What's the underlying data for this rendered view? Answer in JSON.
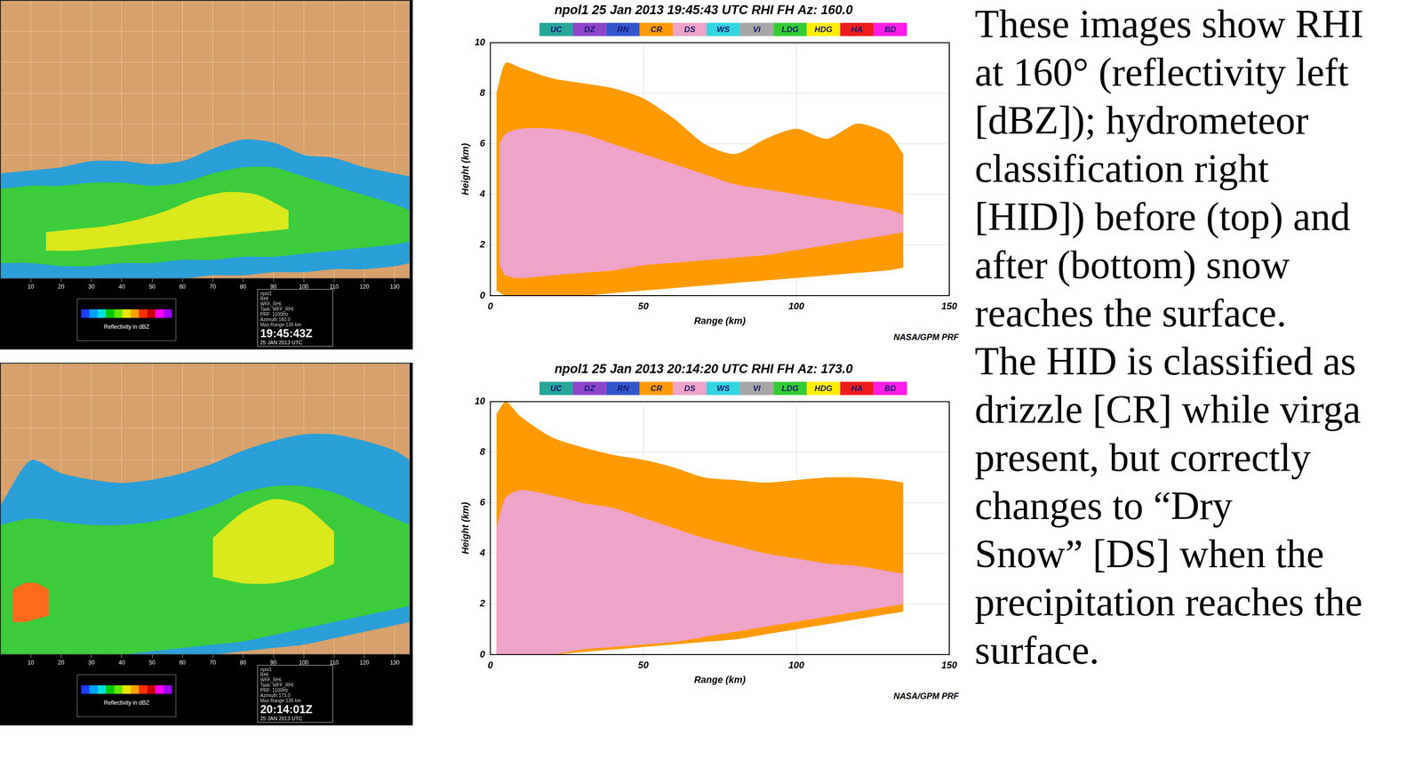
{
  "caption": [
    "These images show RHI",
    "at 160° (reflectivity left",
    "[dBZ]); hydrometeor",
    "classification right",
    "[HID]) before (top) and",
    "after (bottom) snow",
    "reaches the surface.",
    "The HID is classified as",
    "drizzle [CR] while virga",
    "present, but correctly",
    "changes to “Dry",
    "Snow” [DS] when the",
    "precipitation reaches the",
    "surface."
  ],
  "chart_data": [
    {
      "type": "area",
      "panel": "reflectivity",
      "xlim": [
        0,
        135
      ],
      "ylim": [
        0,
        9
      ],
      "xticks": [
        10,
        20,
        30,
        40,
        50,
        60,
        70,
        80,
        90,
        100,
        110,
        120,
        130
      ],
      "yticks": [
        0,
        1,
        2,
        3,
        4,
        5,
        6,
        7,
        8,
        9
      ],
      "grid": true,
      "tick_labels": "x",
      "series": [
        {
          "color": "#2a9fd8",
          "x": [
            0,
            10,
            20,
            30,
            40,
            50,
            60,
            70,
            80,
            90,
            100,
            110,
            120,
            130,
            135
          ],
          "bottom": [
            0,
            0,
            0,
            0,
            0,
            0,
            0,
            0.1,
            0.1,
            0.2,
            0.2,
            0.3,
            0.3,
            0.4,
            0.5
          ],
          "top": [
            3.4,
            3.5,
            3.6,
            3.8,
            3.8,
            3.7,
            3.8,
            4.2,
            4.5,
            4.4,
            4.0,
            3.9,
            3.6,
            3.4,
            3.3
          ]
        },
        {
          "color": "#3ccc3c",
          "x": [
            0,
            10,
            20,
            30,
            40,
            50,
            60,
            70,
            80,
            90,
            100,
            110,
            120,
            130,
            135
          ],
          "bottom": [
            0.5,
            0.5,
            0.4,
            0.4,
            0.5,
            0.5,
            0.6,
            0.6,
            0.7,
            0.7,
            0.8,
            0.9,
            1.0,
            1.1,
            1.2
          ],
          "top": [
            2.9,
            3.0,
            3.0,
            3.1,
            3.1,
            3.0,
            3.1,
            3.4,
            3.6,
            3.6,
            3.3,
            3.0,
            2.7,
            2.4,
            2.2
          ]
        },
        {
          "color": "#dbe81c",
          "x": [
            15,
            25,
            35,
            45,
            55,
            65,
            75,
            85,
            95
          ],
          "bottom": [
            0.9,
            0.9,
            1.0,
            1.1,
            1.2,
            1.3,
            1.4,
            1.5,
            1.6
          ],
          "top": [
            1.5,
            1.6,
            1.7,
            1.9,
            2.2,
            2.6,
            2.8,
            2.7,
            2.2
          ]
        }
      ],
      "colorbar": {
        "label": "Reflectivity in dBZ",
        "colors": [
          "#1e3cff",
          "#00a0ff",
          "#00e0e0",
          "#00c800",
          "#64e600",
          "#e6e600",
          "#ffa000",
          "#ff3200",
          "#c80000",
          "#ff00ff",
          "#a000ff"
        ]
      },
      "info": {
        "lines": [
          "npol1",
          "RHI",
          "WFF_RHI",
          "Task: WFF_RHI",
          "PRF: 1100Hz",
          "Azimuth:160.0",
          "Max Range:135 km"
        ],
        "time": "19:45:43Z",
        "date": "25 JAN 2013 UTC"
      }
    },
    {
      "type": "area",
      "panel": "hid",
      "title": "npol1 25 Jan 2013 19:45:43 UTC RHI FH Az: 160.0",
      "x_label": "Range (km)",
      "y_label": "Height (km)",
      "credit": "NASA/GPM PRF",
      "xlim": [
        0,
        150
      ],
      "ylim": [
        0,
        10
      ],
      "xticks": [
        0,
        50,
        100,
        150
      ],
      "yticks": [
        0,
        2,
        4,
        6,
        8,
        10
      ],
      "grid": true,
      "legend": "top",
      "classes": [
        {
          "name": "UC",
          "color": "#26a69a"
        },
        {
          "name": "DZ",
          "color": "#8e44c8"
        },
        {
          "name": "RN",
          "color": "#3355cc"
        },
        {
          "name": "CR",
          "color": "#ff9a00"
        },
        {
          "name": "DS",
          "color": "#eea3c9"
        },
        {
          "name": "WS",
          "color": "#33d6e0"
        },
        {
          "name": "VI",
          "color": "#a6a6a6"
        },
        {
          "name": "LDG",
          "color": "#33cc33"
        },
        {
          "name": "HDG",
          "color": "#ffee00"
        },
        {
          "name": "HA",
          "color": "#ee1c1c"
        },
        {
          "name": "BD",
          "color": "#ff1ee6"
        }
      ],
      "series": [
        {
          "name": "CR",
          "color": "#ff9a00",
          "x": [
            2,
            5,
            10,
            20,
            30,
            40,
            50,
            60,
            70,
            80,
            90,
            100,
            110,
            120,
            130,
            135
          ],
          "bottom": [
            0.2,
            0,
            0,
            0,
            0,
            0.1,
            0.2,
            0.3,
            0.4,
            0.5,
            0.6,
            0.7,
            0.8,
            0.9,
            1.0,
            1.1
          ],
          "top": [
            8.0,
            9.2,
            9.0,
            8.6,
            8.4,
            8.2,
            7.8,
            7.0,
            6.0,
            5.6,
            6.2,
            6.6,
            6.2,
            6.8,
            6.4,
            5.6
          ]
        },
        {
          "name": "DS",
          "color": "#eea3c9",
          "x": [
            3,
            5,
            10,
            20,
            30,
            40,
            50,
            60,
            70,
            80,
            90,
            100,
            110,
            120,
            130,
            135
          ],
          "bottom": [
            1.2,
            0.8,
            0.7,
            0.8,
            0.9,
            1.0,
            1.2,
            1.3,
            1.4,
            1.5,
            1.6,
            1.8,
            2.0,
            2.2,
            2.4,
            2.5
          ],
          "top": [
            6.0,
            6.4,
            6.6,
            6.6,
            6.4,
            6.0,
            5.6,
            5.2,
            4.8,
            4.4,
            4.2,
            4.0,
            3.8,
            3.6,
            3.4,
            3.2
          ]
        }
      ]
    },
    {
      "type": "area",
      "panel": "reflectivity",
      "xlim": [
        0,
        135
      ],
      "ylim": [
        0,
        9
      ],
      "xticks": [
        10,
        20,
        30,
        40,
        50,
        60,
        70,
        80,
        90,
        100,
        110,
        120,
        130
      ],
      "yticks": [
        0,
        1,
        2,
        3,
        4,
        5,
        6,
        7,
        8,
        9
      ],
      "grid": true,
      "tick_labels": "x",
      "series": [
        {
          "color": "#2a9fd8",
          "x": [
            0,
            10,
            20,
            30,
            40,
            50,
            60,
            70,
            80,
            90,
            100,
            110,
            120,
            130,
            135
          ],
          "bottom": [
            0,
            0,
            0,
            0,
            0,
            0,
            0,
            0,
            0.1,
            0.2,
            0.3,
            0.5,
            0.7,
            0.9,
            1.0
          ],
          "top": [
            4.6,
            6.0,
            5.6,
            5.4,
            5.3,
            5.4,
            5.6,
            5.9,
            6.3,
            6.6,
            6.8,
            6.8,
            6.6,
            6.3,
            6.0
          ]
        },
        {
          "color": "#3ccc3c",
          "x": [
            0,
            10,
            20,
            30,
            40,
            50,
            60,
            70,
            80,
            90,
            100,
            110,
            120,
            130,
            135
          ],
          "bottom": [
            0,
            0,
            0,
            0,
            0,
            0.1,
            0.2,
            0.3,
            0.4,
            0.6,
            0.8,
            1.0,
            1.2,
            1.4,
            1.5
          ],
          "top": [
            4.0,
            4.2,
            4.1,
            4.0,
            4.0,
            4.1,
            4.3,
            4.6,
            5.0,
            5.2,
            5.2,
            5.0,
            4.6,
            4.2,
            4.0
          ]
        },
        {
          "color": "#dbe81c",
          "x": [
            70,
            80,
            90,
            100,
            110
          ],
          "bottom": [
            2.4,
            2.2,
            2.2,
            2.4,
            2.8
          ],
          "top": [
            3.6,
            4.4,
            4.8,
            4.6,
            3.8
          ]
        },
        {
          "color": "#ff6a1a",
          "x": [
            4,
            8,
            12,
            16
          ],
          "bottom": [
            1.0,
            1.0,
            1.1,
            1.2
          ],
          "top": [
            2.0,
            2.2,
            2.2,
            2.0
          ]
        }
      ],
      "colorbar": {
        "label": "Reflectivity in dBZ",
        "colors": [
          "#1e3cff",
          "#00a0ff",
          "#00e0e0",
          "#00c800",
          "#64e600",
          "#e6e600",
          "#ffa000",
          "#ff3200",
          "#c80000",
          "#ff00ff",
          "#a000ff"
        ]
      },
      "info": {
        "lines": [
          "npol1",
          "RHI",
          "WFF_RHI",
          "Task: WFF_RHI",
          "PRF: 1100Hz",
          "Azimuth:173.0",
          "Max Range:135 km"
        ],
        "time": "20:14:01Z",
        "date": "25 JAN 2013 UTC"
      }
    },
    {
      "type": "area",
      "panel": "hid",
      "title": "npol1 25 Jan 2013 20:14:20 UTC RHI FH Az: 173.0",
      "x_label": "Range (km)",
      "y_label": "Height (km)",
      "credit": "NASA/GPM PRF",
      "xlim": [
        0,
        150
      ],
      "ylim": [
        0,
        10
      ],
      "xticks": [
        0,
        50,
        100,
        150
      ],
      "yticks": [
        0,
        2,
        4,
        6,
        8,
        10
      ],
      "grid": true,
      "legend": "top",
      "classes": [
        {
          "name": "UC",
          "color": "#26a69a"
        },
        {
          "name": "DZ",
          "color": "#8e44c8"
        },
        {
          "name": "RN",
          "color": "#3355cc"
        },
        {
          "name": "CR",
          "color": "#ff9a00"
        },
        {
          "name": "DS",
          "color": "#eea3c9"
        },
        {
          "name": "WS",
          "color": "#33d6e0"
        },
        {
          "name": "VI",
          "color": "#a6a6a6"
        },
        {
          "name": "LDG",
          "color": "#33cc33"
        },
        {
          "name": "HDG",
          "color": "#ffee00"
        },
        {
          "name": "HA",
          "color": "#ee1c1c"
        },
        {
          "name": "BD",
          "color": "#ff1ee6"
        }
      ],
      "series": [
        {
          "name": "CR",
          "color": "#ff9a00",
          "x": [
            2,
            5,
            10,
            20,
            30,
            40,
            50,
            60,
            70,
            80,
            90,
            100,
            110,
            120,
            130,
            135
          ],
          "bottom": [
            0,
            0,
            0,
            0,
            0.1,
            0.2,
            0.3,
            0.4,
            0.5,
            0.6,
            0.8,
            1.0,
            1.2,
            1.4,
            1.6,
            1.7
          ],
          "top": [
            9.5,
            10,
            9.4,
            8.6,
            8.2,
            7.9,
            7.7,
            7.4,
            7.0,
            6.9,
            6.8,
            6.9,
            7.0,
            7.0,
            6.9,
            6.8
          ]
        },
        {
          "name": "DS",
          "color": "#eea3c9",
          "x": [
            2,
            5,
            10,
            20,
            30,
            40,
            50,
            60,
            70,
            80,
            90,
            100,
            110,
            120,
            130,
            135
          ],
          "bottom": [
            0,
            0,
            0,
            0,
            0.2,
            0.3,
            0.4,
            0.5,
            0.7,
            0.9,
            1.1,
            1.3,
            1.5,
            1.7,
            1.9,
            2.0
          ],
          "top": [
            5.0,
            6.2,
            6.5,
            6.3,
            6.0,
            5.8,
            5.4,
            5.0,
            4.6,
            4.3,
            4.0,
            3.8,
            3.6,
            3.5,
            3.3,
            3.2
          ]
        }
      ]
    }
  ]
}
